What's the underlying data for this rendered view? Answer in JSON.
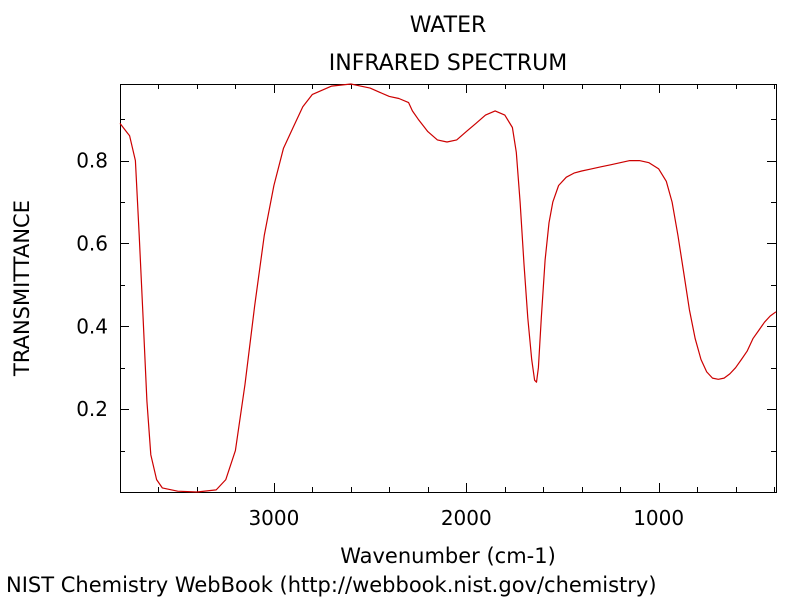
{
  "chart_data": {
    "type": "line",
    "title": "WATER",
    "subtitle": "INFRARED SPECTRUM",
    "xlabel": "Wavenumber (cm-1)",
    "ylabel": "TRANSMITTANCE",
    "xlim": [
      3800,
      390
    ],
    "ylim": [
      0.0,
      0.985
    ],
    "x_reversed": true,
    "x_ticks": [
      3000,
      2000,
      1000
    ],
    "x_tick_labels": [
      "3000",
      "2000",
      "1000"
    ],
    "y_ticks": [
      0.2,
      0.4,
      0.6,
      0.8
    ],
    "y_tick_labels": [
      "0.2",
      "0.4",
      "0.6",
      "0.8"
    ],
    "grid": false,
    "line_color": "#cc0000",
    "series": [
      {
        "name": "",
        "points": [
          [
            3800,
            0.89
          ],
          [
            3750,
            0.86
          ],
          [
            3720,
            0.8
          ],
          [
            3700,
            0.62
          ],
          [
            3680,
            0.42
          ],
          [
            3660,
            0.22
          ],
          [
            3640,
            0.09
          ],
          [
            3610,
            0.03
          ],
          [
            3580,
            0.01
          ],
          [
            3500,
            0.002
          ],
          [
            3400,
            0.0
          ],
          [
            3300,
            0.005
          ],
          [
            3250,
            0.03
          ],
          [
            3200,
            0.1
          ],
          [
            3150,
            0.26
          ],
          [
            3100,
            0.45
          ],
          [
            3050,
            0.62
          ],
          [
            3000,
            0.74
          ],
          [
            2950,
            0.83
          ],
          [
            2900,
            0.88
          ],
          [
            2850,
            0.93
          ],
          [
            2800,
            0.96
          ],
          [
            2700,
            0.98
          ],
          [
            2600,
            0.985
          ],
          [
            2550,
            0.98
          ],
          [
            2500,
            0.975
          ],
          [
            2450,
            0.965
          ],
          [
            2400,
            0.955
          ],
          [
            2350,
            0.95
          ],
          [
            2300,
            0.94
          ],
          [
            2280,
            0.92
          ],
          [
            2250,
            0.9
          ],
          [
            2200,
            0.87
          ],
          [
            2150,
            0.85
          ],
          [
            2100,
            0.845
          ],
          [
            2050,
            0.85
          ],
          [
            2000,
            0.87
          ],
          [
            1950,
            0.89
          ],
          [
            1900,
            0.91
          ],
          [
            1850,
            0.92
          ],
          [
            1800,
            0.91
          ],
          [
            1760,
            0.88
          ],
          [
            1740,
            0.82
          ],
          [
            1720,
            0.7
          ],
          [
            1700,
            0.55
          ],
          [
            1680,
            0.42
          ],
          [
            1660,
            0.32
          ],
          [
            1645,
            0.27
          ],
          [
            1635,
            0.265
          ],
          [
            1625,
            0.3
          ],
          [
            1610,
            0.42
          ],
          [
            1590,
            0.56
          ],
          [
            1570,
            0.65
          ],
          [
            1550,
            0.7
          ],
          [
            1520,
            0.74
          ],
          [
            1480,
            0.76
          ],
          [
            1440,
            0.77
          ],
          [
            1400,
            0.775
          ],
          [
            1350,
            0.78
          ],
          [
            1300,
            0.785
          ],
          [
            1250,
            0.79
          ],
          [
            1200,
            0.795
          ],
          [
            1150,
            0.8
          ],
          [
            1100,
            0.8
          ],
          [
            1050,
            0.795
          ],
          [
            1000,
            0.78
          ],
          [
            960,
            0.75
          ],
          [
            930,
            0.7
          ],
          [
            900,
            0.62
          ],
          [
            870,
            0.53
          ],
          [
            840,
            0.44
          ],
          [
            810,
            0.37
          ],
          [
            780,
            0.32
          ],
          [
            750,
            0.29
          ],
          [
            720,
            0.275
          ],
          [
            690,
            0.272
          ],
          [
            660,
            0.275
          ],
          [
            630,
            0.285
          ],
          [
            600,
            0.3
          ],
          [
            570,
            0.32
          ],
          [
            540,
            0.34
          ],
          [
            510,
            0.37
          ],
          [
            480,
            0.39
          ],
          [
            450,
            0.41
          ],
          [
            420,
            0.425
          ],
          [
            390,
            0.435
          ]
        ]
      }
    ]
  },
  "credit": "NIST Chemistry WebBook (http://webbook.nist.gov/chemistry)"
}
